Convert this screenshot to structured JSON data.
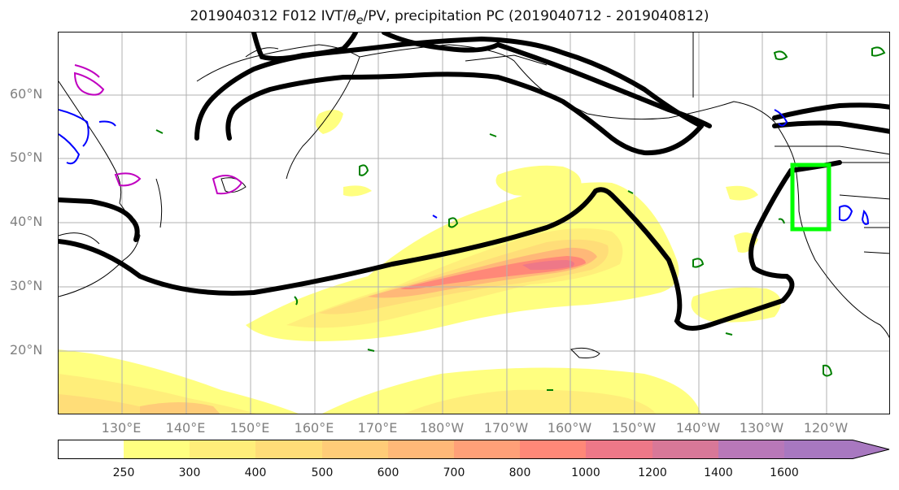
{
  "title": {
    "prefix": "2019040312 F012 IVT/",
    "theta_symbol": "θ",
    "theta_sub": "e",
    "suffix": "/PV, precipitation PC (2019040712 - 2019040812)"
  },
  "map": {
    "lat_labels": [
      "60°N",
      "50°N",
      "40°N",
      "30°N",
      "20°N"
    ],
    "lon_labels": [
      "130°E",
      "140°E",
      "150°E",
      "160°E",
      "170°E",
      "180°W",
      "170°W",
      "160°W",
      "150°W",
      "140°W",
      "130°W",
      "120°W"
    ],
    "contour_colors": {
      "ivt_thick": "#000000",
      "theta_e": "#008000",
      "pv_blue": "#0000ff",
      "pv_magenta": "#c000c0",
      "box": "#00ff00",
      "coast": "#000000"
    }
  },
  "colorbar": {
    "ticks": [
      "250",
      "300",
      "400",
      "500",
      "600",
      "700",
      "800",
      "1000",
      "1200",
      "1400",
      "1600"
    ],
    "colors": [
      "#ffffff",
      "#ffff80",
      "#ffee7a",
      "#ffdd78",
      "#ffcc78",
      "#ffb878",
      "#ffa078",
      "#ff8878",
      "#ee7888",
      "#d87898",
      "#b878b8",
      "#a878c0"
    ],
    "extend": "max"
  }
}
